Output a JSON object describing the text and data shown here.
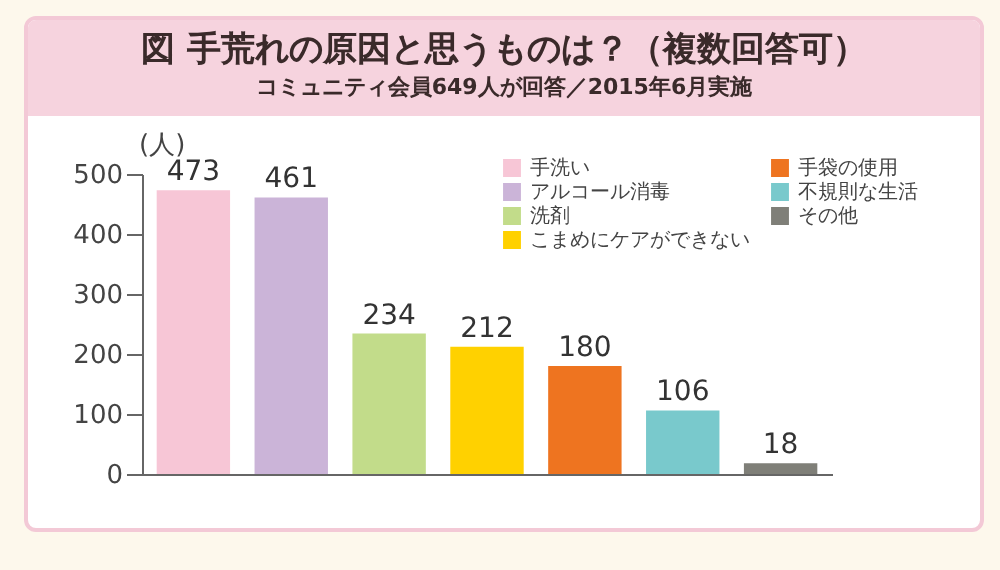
{
  "chart_data": {
    "type": "bar",
    "title": "図 手荒れの原因と思うものは？（複数回答可）",
    "subtitle": "コミュニティ会員649人が回答／2015年6月実施",
    "ylabel": "(人)",
    "categories": [
      null,
      null,
      null,
      null,
      null,
      null,
      null
    ],
    "series": [
      {
        "name": "手洗い",
        "color": "#f7c6d6",
        "values": [
          473,
          null,
          null,
          null,
          null,
          null,
          null
        ]
      },
      {
        "name": "アルコール消毒",
        "color": "#cbb4d8",
        "values": [
          null,
          461,
          null,
          null,
          null,
          null,
          null
        ]
      },
      {
        "name": "洗剤",
        "color": "#c2dc8a",
        "values": [
          null,
          null,
          234,
          null,
          null,
          null,
          null
        ]
      },
      {
        "name": "こまめにケアができない",
        "color": "#ffd100",
        "values": [
          null,
          null,
          null,
          212,
          null,
          null,
          null
        ]
      },
      {
        "name": "手袋の使用",
        "color": "#ee7420",
        "values": [
          null,
          null,
          null,
          null,
          180,
          null,
          null
        ]
      },
      {
        "name": "不規則な生活",
        "color": "#79c9cc",
        "values": [
          null,
          null,
          null,
          null,
          null,
          106,
          null
        ]
      },
      {
        "name": "その他",
        "color": "#7f7f78",
        "values": [
          null,
          null,
          null,
          null,
          null,
          null,
          18
        ]
      }
    ],
    "stacked": true,
    "ylim": [
      0,
      500
    ],
    "yticks": [
      0,
      100,
      200,
      300,
      400,
      500
    ],
    "grid": false,
    "legend": "top right",
    "data_labels": true,
    "tick_labels": "y"
  }
}
